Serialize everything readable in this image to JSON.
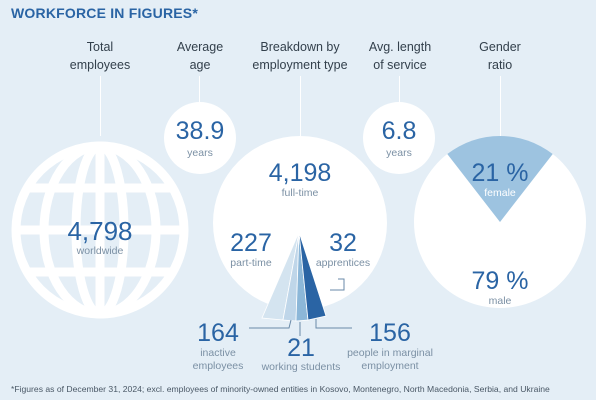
{
  "title": "WORKFORCE IN FIGURES*",
  "headers": {
    "total": "Total\nemployees",
    "age": "Average\nage",
    "breakdown": "Breakdown by\nemployment type",
    "service": "Avg. length\nof service",
    "gender": "Gender\nratio"
  },
  "total_employees": {
    "value": "4,798",
    "label": "worldwide"
  },
  "average_age": {
    "value": "38.9",
    "unit": "years"
  },
  "avg_service": {
    "value": "6.8",
    "unit": "years"
  },
  "breakdown": {
    "fulltime": {
      "value": "4,198",
      "label": "full-time"
    },
    "parttime": {
      "value": "227",
      "label": "part-time"
    },
    "apprentices": {
      "value": "32",
      "label": "apprentices"
    },
    "inactive": {
      "value": "164",
      "label": "inactive\nemployees"
    },
    "students": {
      "value": "21",
      "label": "working students"
    },
    "marginal": {
      "value": "156",
      "label": "people in marginal\nemployment"
    }
  },
  "gender": {
    "female": {
      "value": "21 %",
      "label": "female"
    },
    "male": {
      "value": "79 %",
      "label": "male"
    }
  },
  "footnote": "*Figures as of December 31, 2024; excl. employees of minority-owned entities in Kosovo, Montenegro, North Macedonia, Serbia, and Ukraine",
  "colors": {
    "background": "#e4eef6",
    "accent": "#2a64a4",
    "female_slice": "#9dc3e0",
    "muted_text": "#7b90a4"
  },
  "chart_data": [
    {
      "type": "pie",
      "title": "Gender ratio",
      "categories": [
        "female",
        "male"
      ],
      "values": [
        21,
        79
      ],
      "unit": "%"
    },
    {
      "type": "pie",
      "title": "Breakdown by employment type",
      "categories": [
        "full-time",
        "part-time",
        "apprentices",
        "inactive employees",
        "working students",
        "people in marginal employment"
      ],
      "values": [
        4198,
        227,
        32,
        164,
        21,
        156
      ]
    }
  ]
}
